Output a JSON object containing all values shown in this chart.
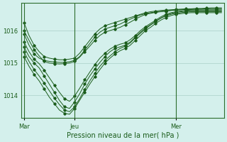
{
  "title": "Pression niveau de la mer( hPa )",
  "bg_color": "#d4f0ec",
  "grid_color": "#aacfc8",
  "line_color": "#1a5c1a",
  "marker_color": "#1a5c1a",
  "axis_color": "#2d6e2d",
  "text_color": "#1a5c1a",
  "ylim": [
    1013.3,
    1016.85
  ],
  "yticks": [
    1014,
    1015,
    1016
  ],
  "xtick_labels": [
    "Mar",
    "Jeu",
    "Mer"
  ],
  "xtick_positions": [
    0,
    10,
    30
  ],
  "vline_positions": [
    0,
    10,
    30
  ],
  "series": [
    [
      1016.25,
      1015.85,
      1015.55,
      1015.35,
      1015.2,
      1015.15,
      1015.12,
      1015.1,
      1015.1,
      1015.12,
      1015.15,
      1015.3,
      1015.5,
      1015.7,
      1015.9,
      1016.05,
      1016.15,
      1016.2,
      1016.25,
      1016.3,
      1016.35,
      1016.4,
      1016.45,
      1016.5,
      1016.55,
      1016.58,
      1016.6,
      1016.62,
      1016.63,
      1016.64,
      1016.65,
      1016.66,
      1016.67,
      1016.67,
      1016.68,
      1016.68,
      1016.69,
      1016.7,
      1016.7,
      1016.7
    ],
    [
      1015.9,
      1015.55,
      1015.28,
      1015.15,
      1015.08,
      1015.05,
      1015.03,
      1015.02,
      1015.02,
      1015.04,
      1015.08,
      1015.2,
      1015.4,
      1015.6,
      1015.8,
      1015.95,
      1016.05,
      1016.1,
      1016.15,
      1016.2,
      1016.28,
      1016.35,
      1016.42,
      1016.48,
      1016.52,
      1016.55,
      1016.57,
      1016.59,
      1016.6,
      1016.62,
      1016.63,
      1016.64,
      1016.65,
      1016.65,
      1016.66,
      1016.66,
      1016.67,
      1016.67,
      1016.67,
      1016.67
    ],
    [
      1015.5,
      1015.2,
      1015.0,
      1014.85,
      1014.6,
      1014.35,
      1014.1,
      1013.85,
      1013.65,
      1013.6,
      1013.8,
      1014.05,
      1014.35,
      1014.6,
      1014.82,
      1015.02,
      1015.2,
      1015.35,
      1015.45,
      1015.5,
      1015.55,
      1015.65,
      1015.8,
      1015.95,
      1016.08,
      1016.18,
      1016.28,
      1016.38,
      1016.45,
      1016.5,
      1016.53,
      1016.55,
      1016.57,
      1016.58,
      1016.58,
      1016.58,
      1016.58,
      1016.58,
      1016.58,
      1016.58
    ],
    [
      1015.2,
      1014.9,
      1014.65,
      1014.45,
      1014.2,
      1013.95,
      1013.75,
      1013.55,
      1013.45,
      1013.42,
      1013.6,
      1013.85,
      1014.1,
      1014.35,
      1014.58,
      1014.8,
      1015.0,
      1015.15,
      1015.28,
      1015.38,
      1015.45,
      1015.55,
      1015.7,
      1015.85,
      1016.0,
      1016.1,
      1016.22,
      1016.32,
      1016.4,
      1016.46,
      1016.5,
      1016.52,
      1016.54,
      1016.55,
      1016.55,
      1016.55,
      1016.55,
      1016.55,
      1016.55,
      1016.55
    ],
    [
      1016.0,
      1015.7,
      1015.42,
      1015.22,
      1015.05,
      1015.0,
      1014.98,
      1014.97,
      1014.98,
      1015.0,
      1015.05,
      1015.18,
      1015.35,
      1015.52,
      1015.7,
      1015.85,
      1015.95,
      1016.0,
      1016.05,
      1016.1,
      1016.18,
      1016.26,
      1016.35,
      1016.43,
      1016.5,
      1016.53,
      1016.56,
      1016.58,
      1016.6,
      1016.62,
      1016.63,
      1016.64,
      1016.65,
      1016.66,
      1016.66,
      1016.66,
      1016.66,
      1016.66,
      1016.66,
      1016.66
    ],
    [
      1015.65,
      1015.35,
      1015.12,
      1014.98,
      1014.78,
      1014.55,
      1014.32,
      1014.1,
      1013.9,
      1013.82,
      1013.98,
      1014.22,
      1014.48,
      1014.72,
      1014.95,
      1015.15,
      1015.3,
      1015.43,
      1015.52,
      1015.58,
      1015.62,
      1015.72,
      1015.85,
      1016.0,
      1016.12,
      1016.22,
      1016.32,
      1016.42,
      1016.5,
      1016.55,
      1016.58,
      1016.6,
      1016.62,
      1016.63,
      1016.63,
      1016.63,
      1016.63,
      1016.63,
      1016.63,
      1016.63
    ],
    [
      1015.35,
      1015.05,
      1014.8,
      1014.6,
      1014.38,
      1014.15,
      1013.92,
      1013.72,
      1013.55,
      1013.5,
      1013.65,
      1013.9,
      1014.18,
      1014.45,
      1014.68,
      1014.9,
      1015.08,
      1015.22,
      1015.35,
      1015.45,
      1015.52,
      1015.62,
      1015.78,
      1015.92,
      1016.05,
      1016.17,
      1016.28,
      1016.38,
      1016.47,
      1016.52,
      1016.56,
      1016.58,
      1016.6,
      1016.61,
      1016.61,
      1016.61,
      1016.61,
      1016.61,
      1016.61,
      1016.61
    ]
  ],
  "n_points": 40
}
